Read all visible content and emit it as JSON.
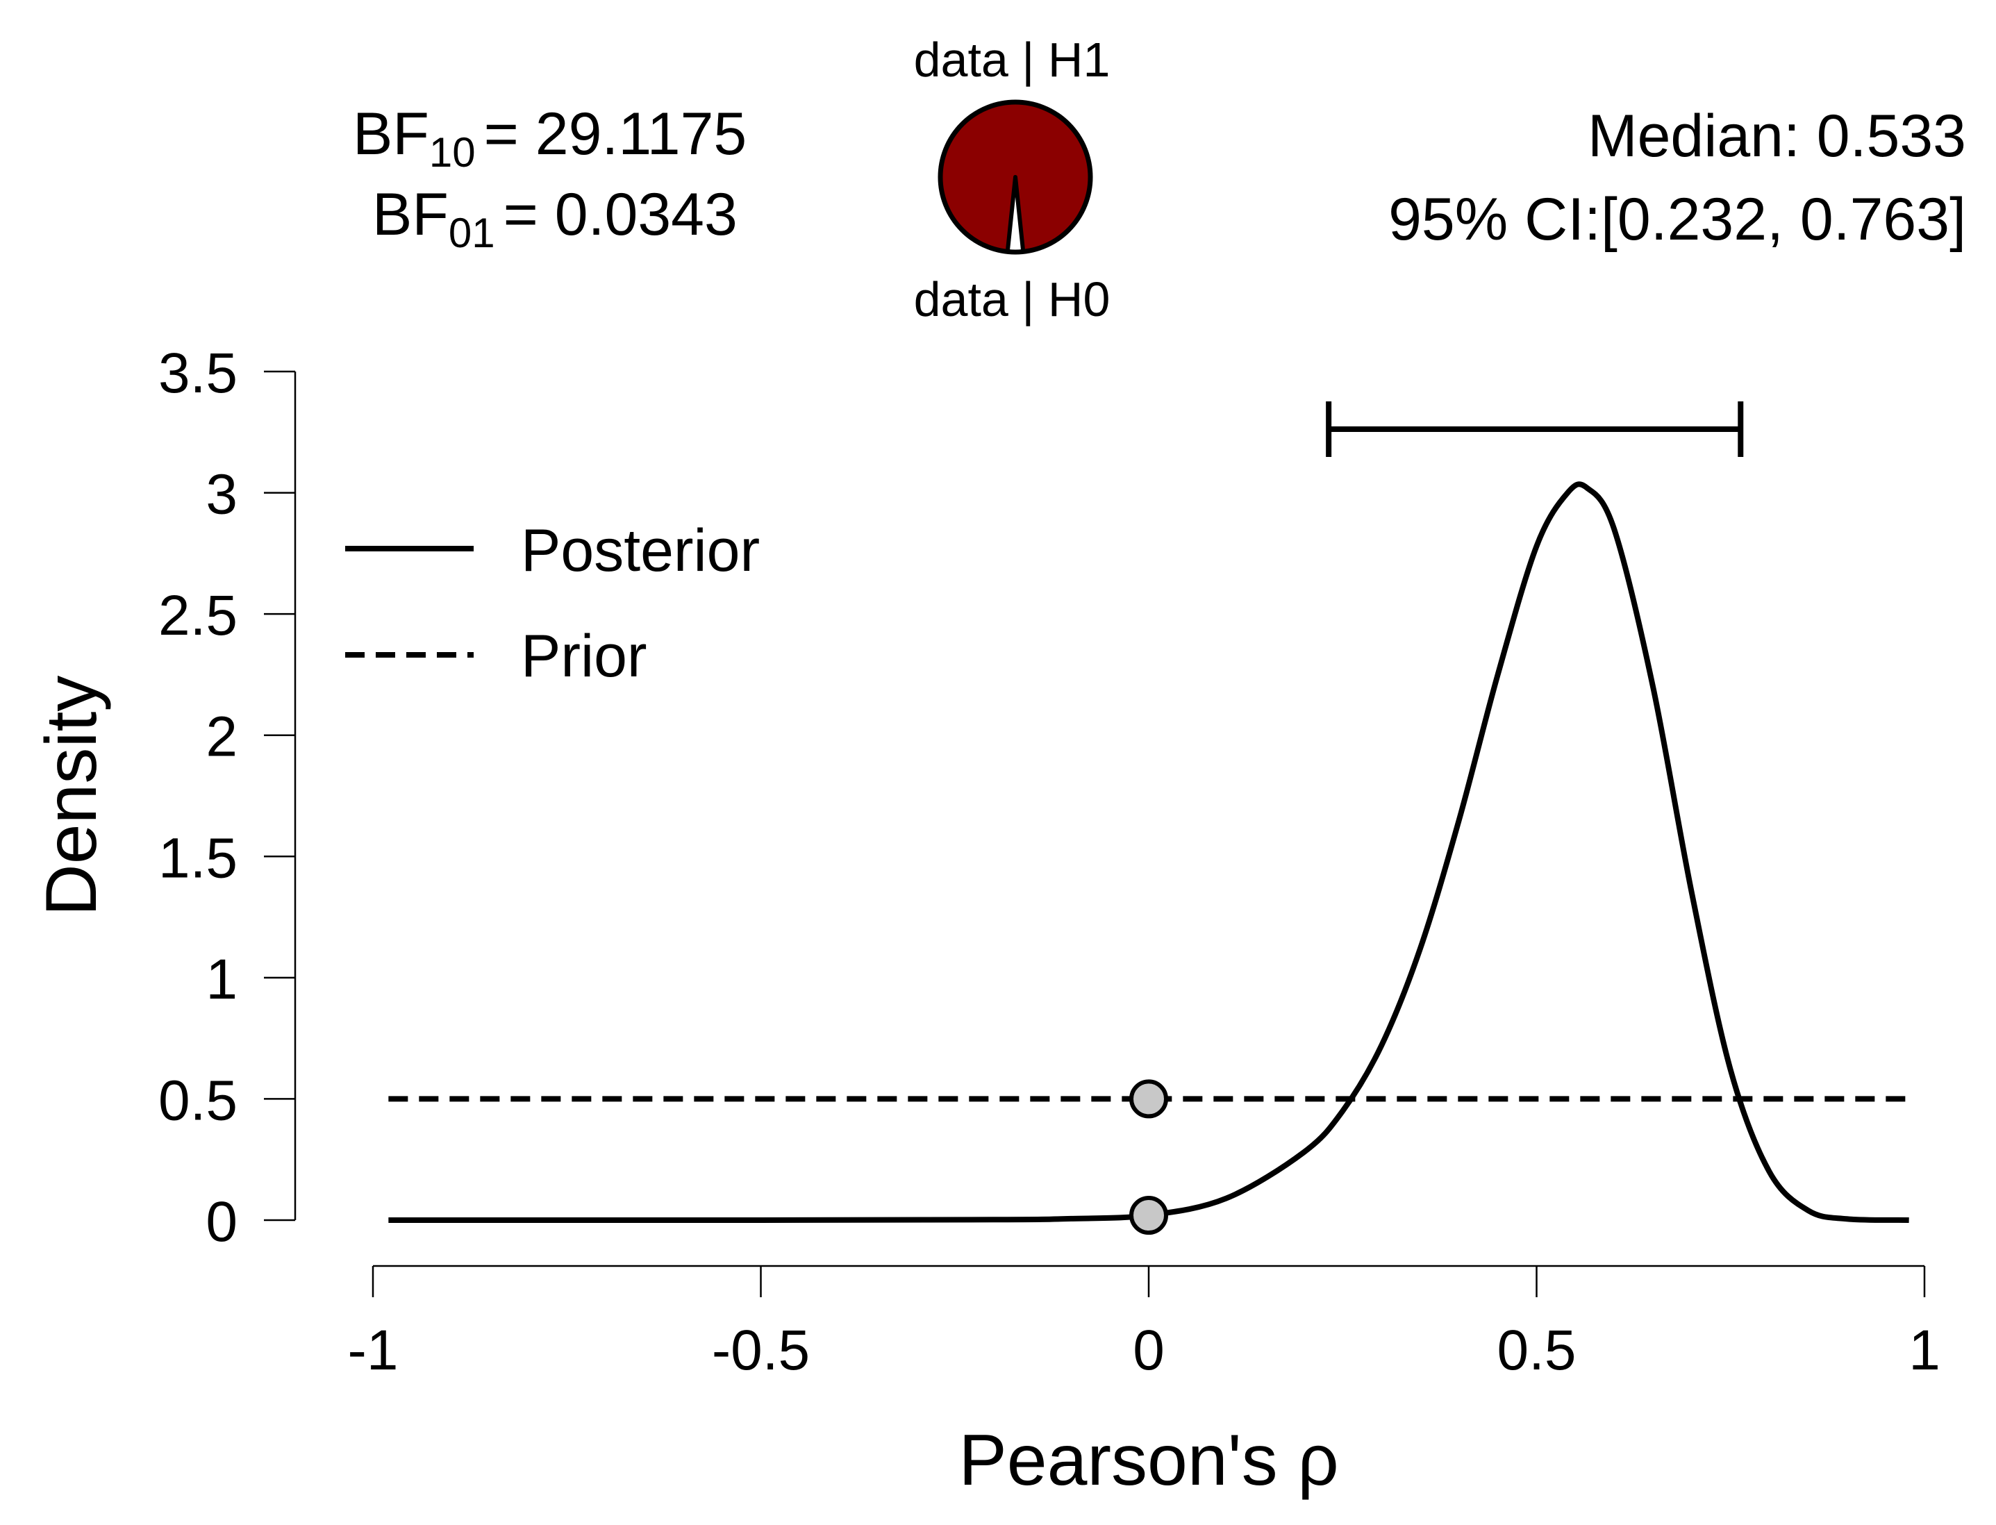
{
  "chart_data": {
    "type": "line",
    "xlabel": "Pearson's ρ",
    "ylabel": "Density",
    "xlim": [
      -1,
      1
    ],
    "ylim": [
      0,
      3.5
    ],
    "x_ticks": [
      -1,
      -0.5,
      0,
      0.5,
      1
    ],
    "x_tick_labels": [
      "-1",
      "-0.5",
      "0",
      "0.5",
      "1"
    ],
    "y_ticks": [
      0,
      0.5,
      1,
      1.5,
      2,
      2.5,
      3,
      3.5
    ],
    "y_tick_labels": [
      "0",
      "0.5",
      "1",
      "1.5",
      "2",
      "2.5",
      "3",
      "3.5"
    ],
    "series": [
      {
        "name": "Posterior",
        "style": "solid",
        "x": [
          -0.98,
          -0.5,
          -0.2,
          -0.1,
          0,
          0.1,
          0.2,
          0.25,
          0.3,
          0.35,
          0.4,
          0.45,
          0.5,
          0.54,
          0.565,
          0.6,
          0.65,
          0.7,
          0.75,
          0.8,
          0.85,
          0.9,
          0.98
        ],
        "y": [
          0,
          0,
          0.002,
          0.006,
          0.02,
          0.09,
          0.28,
          0.45,
          0.72,
          1.12,
          1.65,
          2.25,
          2.78,
          3.0,
          3.02,
          2.85,
          2.2,
          1.35,
          0.62,
          0.2,
          0.04,
          0.005,
          0
        ]
      },
      {
        "name": "Prior",
        "style": "dashed",
        "x": [
          -0.98,
          0.98
        ],
        "y": [
          0.5,
          0.5
        ]
      }
    ],
    "points": [
      {
        "name": "prior-at-zero",
        "x": 0,
        "y": 0.5
      },
      {
        "name": "posterior-at-zero",
        "x": 0,
        "y": 0.02
      }
    ],
    "credible_interval": [
      0.232,
      0.763
    ],
    "legend": {
      "position": "top-left",
      "entries": [
        "Posterior",
        "Prior"
      ]
    },
    "annotations": {
      "bf10_label": "BF",
      "bf10_sub": "10",
      "bf10_value": "= 29.1175",
      "bf01_label": "BF",
      "bf01_sub": "01",
      "bf01_value": "= 0.0343",
      "median_text": "Median: 0.533",
      "ci_text": "95% CI:[0.232, 0.763]",
      "pie_top_label": "data | H1",
      "pie_bottom_label": "data | H0"
    },
    "pie": {
      "h1_proportion": 0.9668,
      "h1_color": "#8b0000",
      "h0_color": "#ffffff"
    },
    "colors": {
      "line": "#000000",
      "point_fill": "#c8c8c8",
      "axis": "#000000"
    }
  }
}
